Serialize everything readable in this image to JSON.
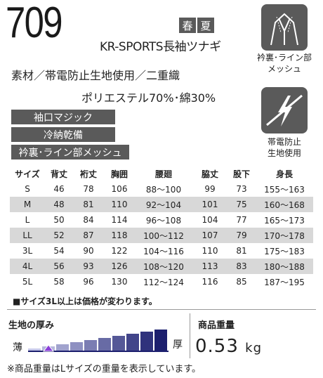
{
  "product": {
    "model": "709",
    "season": [
      "春",
      "夏"
    ],
    "name": "KR-SPORTS長袖ツナギ",
    "material": "素材／帯電防止生地使用／二重織",
    "composition": "ポリエステル70%･綿30%"
  },
  "features": [
    "袖口マジック",
    "冷納乾備",
    "衿裏･ライン部メッシュ"
  ],
  "icons": [
    {
      "name": "collar-mesh-icon",
      "label_lines": [
        "衿裏･ライン部",
        "メッシュ"
      ]
    },
    {
      "name": "antistatic-icon",
      "label_lines": [
        "帯電防止",
        "生地使用"
      ]
    }
  ],
  "size_table": {
    "headers": [
      "サイズ",
      "背丈",
      "裄丈",
      "胸囲",
      "腰廻",
      "脇丈",
      "股下",
      "身長"
    ],
    "rows": [
      [
        "S",
        "46",
        "78",
        "106",
        "88〜100",
        "99",
        "73",
        "155〜163"
      ],
      [
        "M",
        "48",
        "81",
        "110",
        "92〜104",
        "101",
        "75",
        "160〜168"
      ],
      [
        "L",
        "50",
        "84",
        "114",
        "96〜108",
        "104",
        "77",
        "165〜173"
      ],
      [
        "LL",
        "52",
        "87",
        "118",
        "100〜112",
        "107",
        "79",
        "170〜178"
      ],
      [
        "3L",
        "54",
        "90",
        "122",
        "104〜116",
        "110",
        "81",
        "175〜183"
      ],
      [
        "4L",
        "56",
        "93",
        "126",
        "108〜120",
        "113",
        "83",
        "180〜188"
      ],
      [
        "5L",
        "58",
        "96",
        "130",
        "112〜124",
        "116",
        "85",
        "187〜195"
      ]
    ]
  },
  "note_price": "■サイズ3L以上は価格が変わります。",
  "thickness": {
    "title": "生地の厚み",
    "thin_label": "薄",
    "thick_label": "厚",
    "level": 2,
    "levels": 10
  },
  "weight": {
    "title": "商品重量",
    "value": "0.53",
    "unit": "kg"
  },
  "note_weight": "※商品重量はLサイズの重量を表示しています。",
  "colors": {
    "dark_gray": "#5a5a5a",
    "row_shade": "#d8d8d8",
    "bar_dark": "#1c1f6e",
    "bar_light": "#c7c9ea",
    "marker": "#8b3fd9"
  }
}
